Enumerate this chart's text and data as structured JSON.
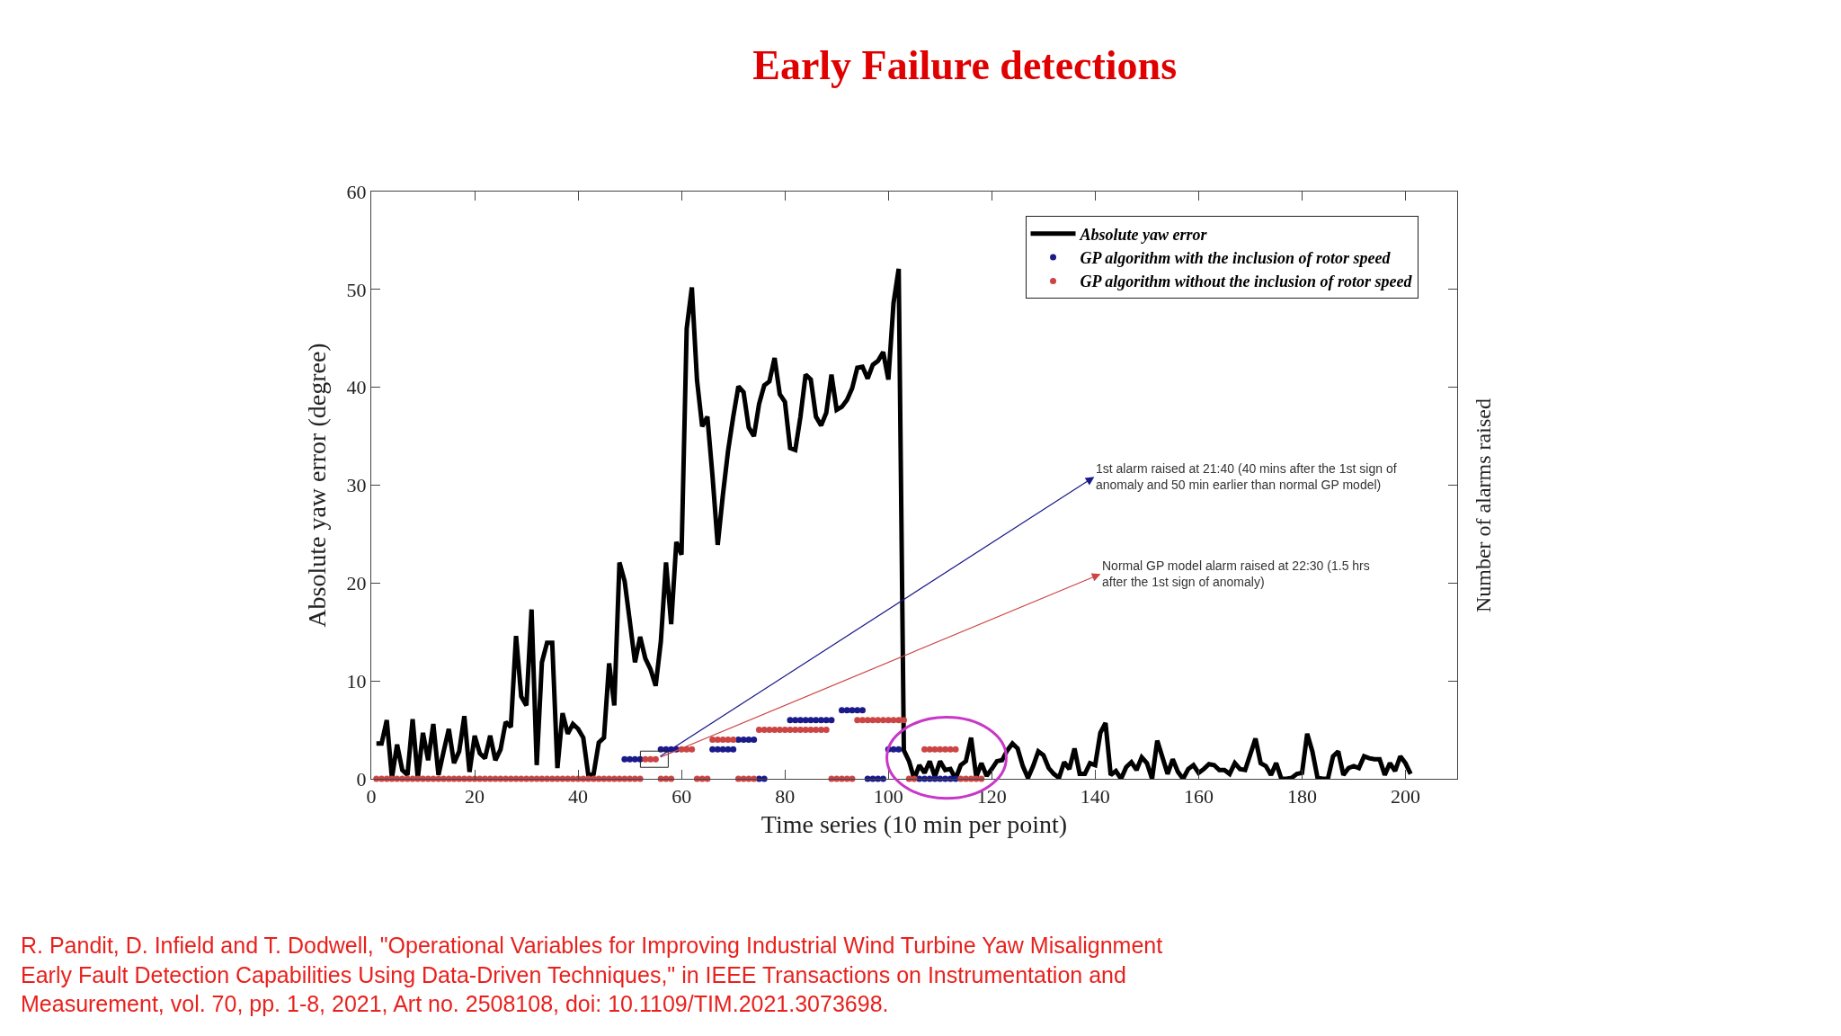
{
  "chart_data": {
    "type": "line",
    "title": "Early Failure detections",
    "xlabel": "Time series (10 min per point)",
    "ylabel": "Absolute yaw error (degree)",
    "y2label": "Number of alarms raised",
    "xlim": [
      0,
      210
    ],
    "xticks": [
      0,
      20,
      40,
      60,
      80,
      100,
      120,
      140,
      160,
      180,
      200
    ],
    "ylim": [
      0,
      60
    ],
    "yticks": [
      0,
      10,
      20,
      30,
      40,
      50,
      60
    ],
    "legend": "top right",
    "series": [
      {
        "name": "Absolute yaw error",
        "color": "#000000",
        "x": [
          1,
          2,
          3,
          4,
          5,
          6,
          7,
          8,
          9,
          10,
          11,
          12,
          13,
          14,
          15,
          16,
          17,
          18,
          19,
          20,
          21,
          22,
          23,
          24,
          25,
          26,
          27,
          28,
          29,
          30,
          31,
          32,
          33,
          34,
          35,
          36,
          37,
          38,
          39,
          40,
          41,
          42,
          43,
          44,
          45,
          46,
          47,
          48,
          49,
          50,
          51,
          52,
          53,
          54,
          55,
          56,
          57,
          58,
          59,
          60,
          61,
          62,
          63,
          64,
          65,
          66,
          67,
          68,
          69,
          70,
          71,
          72,
          73,
          74,
          75,
          76,
          77,
          78,
          79,
          80,
          81,
          82,
          83,
          84,
          85,
          86,
          87,
          88,
          89,
          90,
          91,
          92,
          93,
          94,
          95,
          96,
          97,
          98,
          99,
          100,
          101,
          102,
          103,
          104,
          105,
          106,
          107,
          108,
          109,
          110,
          111,
          112,
          113,
          114,
          115,
          116,
          117,
          118,
          119,
          120,
          121,
          122,
          123,
          124,
          125,
          126,
          127,
          128,
          129,
          130,
          131,
          132,
          133,
          134,
          135,
          136,
          137,
          138,
          139,
          140,
          141,
          142,
          143,
          144,
          145,
          146,
          147,
          148,
          149,
          150,
          151,
          152,
          153,
          154,
          155,
          156,
          157,
          158,
          159,
          160,
          161,
          162,
          163,
          164,
          165,
          166,
          167,
          168,
          169,
          170,
          171,
          172,
          173,
          174,
          175,
          176,
          177,
          178,
          179,
          180,
          181,
          182,
          183,
          184,
          185,
          186,
          187,
          188,
          189,
          190,
          191,
          192,
          193,
          194,
          195,
          196,
          197,
          198,
          199,
          200,
          201
        ],
        "values": [
          3.6,
          3.6,
          6.0,
          0.1,
          3.5,
          0.9,
          0.4,
          6.1,
          0.1,
          4.7,
          1.9,
          5.6,
          0.4,
          2.8,
          5.1,
          1.6,
          2.8,
          6.4,
          0.7,
          4.4,
          2.6,
          2.1,
          4.4,
          1.9,
          3.0,
          5.8,
          5.3,
          14.6,
          8.4,
          7.5,
          17.3,
          1.4,
          11.9,
          13.9,
          13.9,
          1.1,
          6.7,
          4.6,
          5.6,
          5.1,
          4.2,
          0.3,
          0.5,
          3.7,
          4.2,
          11.8,
          7.5,
          22.1,
          20.2,
          16.1,
          11.9,
          14.5,
          12.3,
          11.2,
          9.5,
          14.0,
          22.1,
          15.8,
          24.2,
          22.9,
          46.0,
          50.2,
          40.7,
          36.0,
          37.0,
          30.9,
          23.9,
          29.0,
          33.5,
          37.0,
          40.1,
          39.5,
          35.9,
          35.0,
          38.3,
          40.2,
          40.6,
          43.0,
          39.3,
          38.5,
          33.8,
          33.6,
          37.0,
          41.3,
          40.8,
          37.0,
          36.1,
          37.4,
          41.3,
          37.7,
          38.0,
          38.7,
          39.9,
          42.0,
          42.1,
          40.9,
          42.3,
          42.7,
          43.6,
          40.8,
          48.6,
          52.1,
          2.9,
          1.8,
          0.0,
          1.4,
          0.6,
          1.8,
          0.2,
          1.8,
          0.9,
          1.0,
          0.0,
          1.4,
          1.8,
          4.2,
          0.2,
          1.6,
          0.3,
          1.0,
          1.8,
          1.9,
          2.9,
          3.6,
          3.1,
          1.3,
          0.1,
          1.3,
          2.8,
          2.4,
          1.1,
          0.5,
          0.1,
          1.7,
          1.0,
          3.1,
          0.5,
          0.5,
          1.6,
          1.4,
          4.7,
          5.7,
          0.4,
          0.8,
          0.0,
          1.2,
          1.7,
          0.9,
          2.2,
          1.6,
          0.0,
          3.9,
          2.2,
          0.5,
          2.0,
          0.7,
          0.0,
          1.0,
          1.4,
          0.6,
          1.0,
          1.5,
          1.4,
          0.9,
          0.9,
          0.5,
          1.6,
          1.0,
          0.9,
          2.5,
          4.1,
          1.6,
          1.3,
          0.4,
          1.6,
          0.0,
          0.0,
          0.1,
          0.5,
          0.6,
          4.6,
          2.8,
          0.1,
          0.0,
          0.0,
          2.3,
          2.8,
          0.4,
          1.1,
          1.3,
          1.1,
          2.3,
          2.1,
          2.0,
          2.0,
          0.4,
          1.6,
          0.8,
          2.3,
          1.6,
          0.5
        ]
      },
      {
        "name": "GP algorithm with the inclusion of rotor speed",
        "type": "scatter",
        "marker": "circle",
        "color": "#1a1a8a",
        "x": [
          49,
          50,
          51,
          52,
          56,
          57,
          58,
          59,
          66,
          67,
          68,
          69,
          70,
          71,
          72,
          73,
          74,
          75,
          76,
          81,
          82,
          83,
          84,
          85,
          86,
          87,
          88,
          89,
          91,
          92,
          93,
          94,
          95,
          96,
          97,
          98,
          99,
          100,
          101,
          102,
          106,
          107,
          108,
          109,
          110,
          111,
          112,
          113
        ],
        "values": [
          2,
          2,
          2,
          2,
          3,
          3,
          3,
          3,
          3,
          3,
          3,
          3,
          3,
          4,
          4,
          4,
          4,
          0,
          0,
          6,
          6,
          6,
          6,
          6,
          6,
          6,
          6,
          6,
          7,
          7,
          7,
          7,
          7,
          0,
          0,
          0,
          0,
          3,
          3,
          3,
          0,
          0,
          0,
          0,
          0,
          0,
          0,
          0
        ]
      },
      {
        "name": "GP algorithm without the inclusion of rotor speed",
        "type": "scatter",
        "marker": "circle",
        "color": "#cc4444",
        "x": [
          1,
          2,
          3,
          4,
          5,
          6,
          7,
          8,
          9,
          10,
          11,
          12,
          13,
          14,
          15,
          16,
          17,
          18,
          19,
          20,
          21,
          22,
          23,
          24,
          25,
          26,
          27,
          28,
          29,
          30,
          31,
          32,
          33,
          34,
          35,
          36,
          37,
          38,
          39,
          40,
          41,
          42,
          43,
          44,
          45,
          46,
          47,
          48,
          49,
          50,
          51,
          52,
          53,
          54,
          55,
          56,
          57,
          58,
          60,
          61,
          62,
          63,
          64,
          65,
          66,
          67,
          68,
          69,
          70,
          71,
          72,
          73,
          74,
          75,
          76,
          77,
          78,
          79,
          80,
          81,
          82,
          83,
          84,
          85,
          86,
          87,
          88,
          89,
          90,
          91,
          92,
          93,
          94,
          95,
          96,
          97,
          98,
          99,
          100,
          101,
          102,
          103,
          104,
          105,
          107,
          108,
          109,
          110,
          111,
          112,
          113,
          114,
          115,
          116,
          117,
          118
        ],
        "values": [
          0,
          0,
          0,
          0,
          0,
          0,
          0,
          0,
          0,
          0,
          0,
          0,
          0,
          0,
          0,
          0,
          0,
          0,
          0,
          0,
          0,
          0,
          0,
          0,
          0,
          0,
          0,
          0,
          0,
          0,
          0,
          0,
          0,
          0,
          0,
          0,
          0,
          0,
          0,
          0,
          0,
          0,
          0,
          0,
          0,
          0,
          0,
          0,
          0,
          0,
          0,
          0,
          2,
          2,
          2,
          0,
          0,
          0,
          3,
          3,
          3,
          0,
          0,
          0,
          4,
          4,
          4,
          4,
          4,
          0,
          0,
          0,
          0,
          5,
          5,
          5,
          5,
          5,
          5,
          5,
          5,
          5,
          5,
          5,
          5,
          5,
          5,
          0,
          0,
          0,
          0,
          0,
          6,
          6,
          6,
          6,
          6,
          6,
          6,
          6,
          6,
          6,
          0,
          0,
          3,
          3,
          3,
          3,
          3,
          3,
          3,
          0,
          0,
          0,
          0,
          0
        ]
      }
    ],
    "annotations": [
      {
        "text": "1st alarm raised at 21:40 (40 mins after the 1st sign of\nanomaly and 50 min earlier than normal GP model)",
        "x": 55,
        "y": 2
      },
      {
        "text": "Normal GP model alarm raised at 22:30 (1.5 hrs\nafter the 1st sign of anomaly)",
        "x": 55,
        "y": 2
      },
      "R. Pandit, D. Infield and T. Dodwell, \"Operational Variables for Improving Industrial Wind Turbine Yaw Misalignment\nEarly Fault Detection Capabilities Using Data-Driven Techniques,\" in IEEE Transactions on Instrumentation and\nMeasurement, vol. 70, pp. 1-8, 2021, Art no. 2508108, doi: 10.1109/TIM.2021.3073698."
    ]
  }
}
